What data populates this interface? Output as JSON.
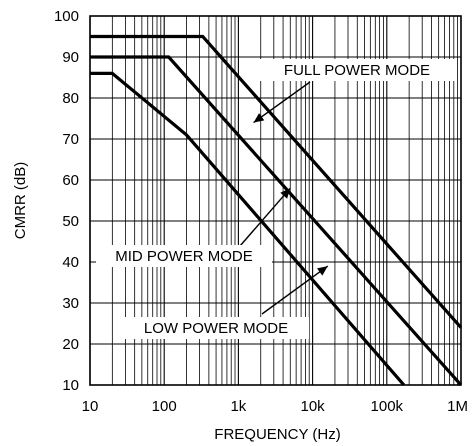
{
  "chart_data": {
    "type": "line",
    "xlabel": "FREQUENCY (Hz)",
    "ylabel": "CMRR (dB)",
    "x_scale": "log",
    "xlim": [
      10,
      1000000
    ],
    "ylim": [
      10,
      100
    ],
    "grid": true,
    "x_ticks": [
      {
        "value": 10,
        "label": "10"
      },
      {
        "value": 100,
        "label": "100"
      },
      {
        "value": 1000,
        "label": "1k"
      },
      {
        "value": 10000,
        "label": "10k"
      },
      {
        "value": 100000,
        "label": "100k"
      },
      {
        "value": 1000000,
        "label": "1M"
      }
    ],
    "y_ticks": [
      10,
      20,
      30,
      40,
      50,
      60,
      70,
      80,
      90,
      100
    ],
    "series": [
      {
        "name": "FULL POWER MODE",
        "points": [
          [
            10,
            95
          ],
          [
            330,
            95
          ],
          [
            1000000,
            24
          ]
        ]
      },
      {
        "name": "MID POWER MODE",
        "points": [
          [
            10,
            90
          ],
          [
            115,
            90
          ],
          [
            1000000,
            10
          ]
        ]
      },
      {
        "name": "LOW POWER MODE",
        "points": [
          [
            10,
            86
          ],
          [
            20,
            86
          ],
          [
            200,
            71
          ],
          [
            170000,
            10
          ]
        ]
      }
    ],
    "annotations": [
      {
        "text": "FULL POWER MODE",
        "series": "FULL POWER MODE",
        "target": [
          1600,
          74
        ]
      },
      {
        "text": "MID POWER MODE",
        "series": "MID POWER MODE",
        "target": [
          5000,
          58
        ]
      },
      {
        "text": "LOW POWER MODE",
        "series": "LOW POWER MODE",
        "target": [
          16000,
          39
        ]
      }
    ],
    "colors": {
      "line": "#000000",
      "grid": "#000000",
      "background": "#ffffff"
    }
  }
}
